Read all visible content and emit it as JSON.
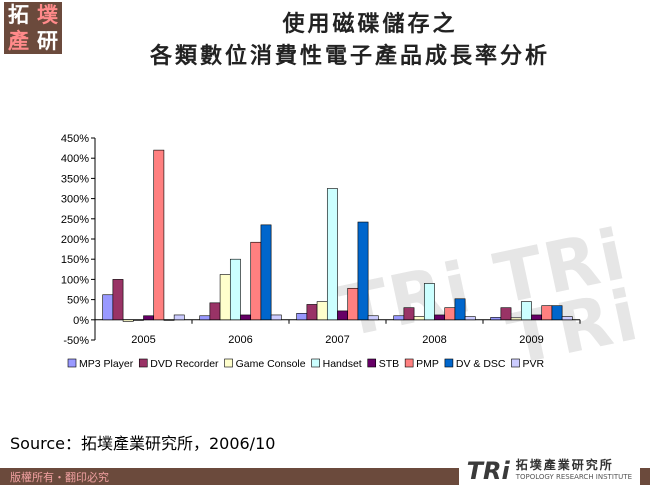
{
  "logo": {
    "chars": [
      "拓",
      "墣",
      "產",
      "研"
    ]
  },
  "header": {
    "title_line1": "使用磁碟儲存之",
    "title_line2": "各類數位消費性電子產品成長率分析"
  },
  "watermark": "TRi TRi TRi",
  "chart_data": {
    "type": "bar",
    "categories": [
      "2005",
      "2006",
      "2007",
      "2008",
      "2009"
    ],
    "ylim": [
      -0.5,
      4.5
    ],
    "y_ticks": [
      "-50%",
      "0%",
      "50%",
      "100%",
      "150%",
      "200%",
      "250%",
      "300%",
      "350%",
      "400%",
      "450%"
    ],
    "grid": false,
    "legend_position": "bottom",
    "series": [
      {
        "name": "MP3 Player",
        "color": "#9999ff",
        "values": [
          0.62,
          0.1,
          0.16,
          0.1,
          0.06
        ]
      },
      {
        "name": "DVD Recorder",
        "color": "#993366",
        "values": [
          1.0,
          0.42,
          0.38,
          0.3,
          0.3
        ]
      },
      {
        "name": "Game Console",
        "color": "#ffffcc",
        "values": [
          -0.04,
          1.12,
          0.45,
          0.08,
          0.05
        ]
      },
      {
        "name": "Handset",
        "color": "#ccffff",
        "values": [
          0.0,
          1.5,
          3.25,
          0.9,
          0.45
        ]
      },
      {
        "name": "STB",
        "color": "#660066",
        "values": [
          0.1,
          0.12,
          0.22,
          0.12,
          0.12
        ]
      },
      {
        "name": "PMP",
        "color": "#ff8080",
        "values": [
          4.2,
          1.92,
          0.78,
          0.3,
          0.35
        ]
      },
      {
        "name": "DV & DSC",
        "color": "#0066cc",
        "values": [
          0.0,
          2.35,
          2.42,
          0.52,
          0.35
        ]
      },
      {
        "name": "PVR",
        "color": "#ccccff",
        "values": [
          0.12,
          0.12,
          0.1,
          0.08,
          0.08
        ]
      }
    ]
  },
  "source": {
    "text": "Source：拓墣產業研究所，2006/10"
  },
  "footer": {
    "copyright": "版權所有・翻印必究",
    "brand_mark": "TRi",
    "brand_zh": "拓墣產業研究所",
    "brand_en": "TOPOLOGY RESEARCH INSTITUTE"
  }
}
